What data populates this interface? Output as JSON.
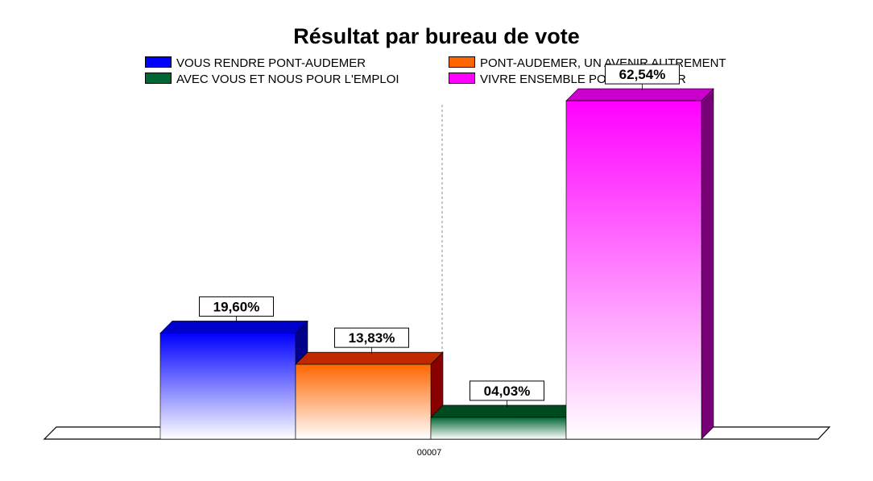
{
  "chart_data": {
    "type": "bar",
    "title": "Résultat par bureau de vote",
    "categories": [
      "00007"
    ],
    "series": [
      {
        "name": "VOUS RENDRE PONT-AUDEMER",
        "values": [
          19.6
        ],
        "label": "19,60%",
        "color": "#0000ff",
        "side": "#000088",
        "top": "#0000cc"
      },
      {
        "name": "PONT-AUDEMER, UN AVENIR AUTREMENT",
        "values": [
          13.83
        ],
        "label": "13,83%",
        "color": "#ff6600",
        "side": "#880000",
        "top": "#c02800"
      },
      {
        "name": "AVEC VOUS ET NOUS POUR L'EMPLOI",
        "values": [
          4.03
        ],
        "label": "04,03%",
        "color": "#006633",
        "side": "#003300",
        "top": "#004a1f"
      },
      {
        "name": "VIVRE ENSEMBLE PONT-AUDEMER",
        "values": [
          62.54
        ],
        "label": "62,54%",
        "color": "#ff00ff",
        "side": "#770077",
        "top": "#cc00cc"
      }
    ],
    "ylim": [
      0,
      70
    ],
    "legend_position": "top",
    "grid": false
  }
}
